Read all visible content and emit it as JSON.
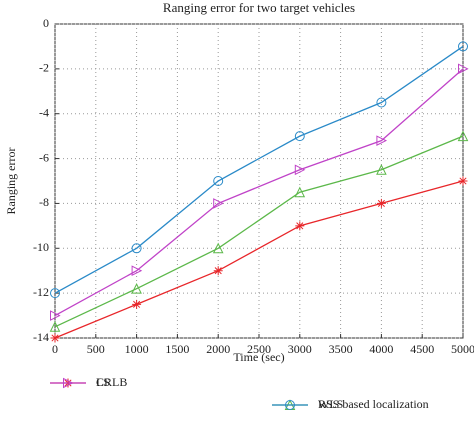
{
  "chart_data": {
    "type": "line",
    "title": "Ranging error for two target vehicles",
    "x_label": "Time (sec)",
    "y_label": "Ranging error",
    "x": [
      0,
      1000,
      2000,
      3000,
      4000,
      5000
    ],
    "series": [
      {
        "name": "CRLB",
        "color": "#e8262a",
        "marker": "asterisk",
        "values": [
          -14,
          -12.5,
          -11,
          -9,
          -8,
          -7
        ]
      },
      {
        "name": "RSS based localization",
        "color": "#5cb84a",
        "marker": "triangle-up",
        "values": [
          -13.5,
          -11.8,
          -10,
          -7.5,
          -6.5,
          -5
        ]
      },
      {
        "name": "LS",
        "color": "#c043c8",
        "marker": "triangle-right",
        "values": [
          -13,
          -11,
          -8,
          -6.5,
          -5.2,
          -2
        ]
      },
      {
        "name": "WLS",
        "color": "#2a8ac8",
        "marker": "circle",
        "values": [
          -12,
          -10,
          -7,
          -5,
          -3.5,
          -1
        ]
      }
    ],
    "xlim": [
      0,
      5000
    ],
    "xticks": [
      0,
      500,
      1000,
      1500,
      2000,
      2500,
      3000,
      3500,
      4000,
      4500,
      5000
    ],
    "ylim": [
      -14,
      0
    ],
    "yticks": [
      -14,
      -12,
      -10,
      -8,
      -6,
      -4,
      -2,
      0
    ],
    "grid": true,
    "legend": "bottom"
  }
}
